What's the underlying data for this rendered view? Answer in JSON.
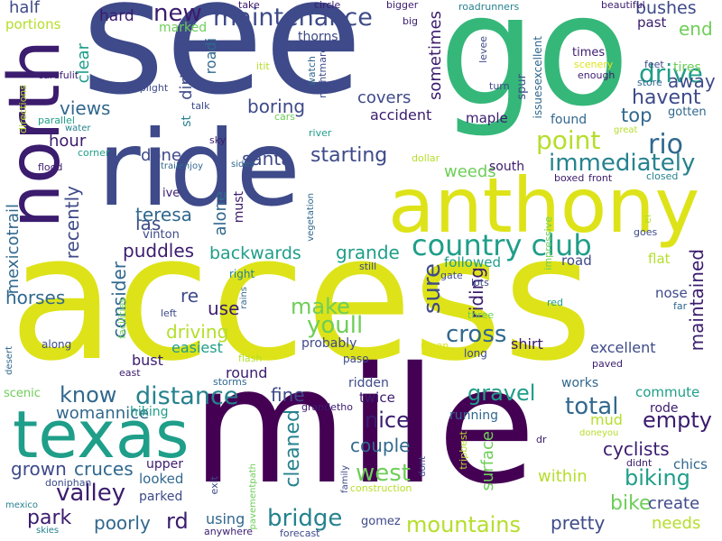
{
  "palette": {
    "dark_purple": "#440154",
    "indigo": "#3e4a89",
    "blue": "#31688e",
    "teal": "#26828e",
    "green_teal": "#1f9e89",
    "green": "#35b779",
    "lime": "#6ece58",
    "yellow_green": "#b5de2b",
    "yellow": "#dde318"
  },
  "words": [
    {
      "text": "access",
      "color": "#dde318"
    },
    {
      "text": "see",
      "color": "#3e4a89"
    },
    {
      "text": "go",
      "color": "#35b779"
    },
    {
      "text": "mile",
      "color": "#440154"
    },
    {
      "text": "ride",
      "color": "#3e4a89"
    },
    {
      "text": "anthony",
      "color": "#dde318"
    },
    {
      "text": "north",
      "color": "#3b1c6e"
    },
    {
      "text": "texas",
      "color": "#1f9e89"
    },
    {
      "text": "country club",
      "color": "#1f9e89"
    },
    {
      "text": "maintenance",
      "color": "#3e4a89"
    },
    {
      "text": "new",
      "color": "#3b1c6e"
    },
    {
      "text": "immediately",
      "color": "#26828e"
    },
    {
      "text": "drive",
      "color": "#1f9e89"
    },
    {
      "text": "rio",
      "color": "#31688e"
    },
    {
      "text": "point",
      "color": "#b5de2b"
    },
    {
      "text": "away",
      "color": "#3e4a89"
    },
    {
      "text": "end",
      "color": "#6ece58"
    },
    {
      "text": "havent",
      "color": "#3e4a89"
    },
    {
      "text": "top",
      "color": "#31688e"
    },
    {
      "text": "bushes",
      "color": "#3e4a89"
    },
    {
      "text": "past",
      "color": "#3b1c6e"
    },
    {
      "text": "santa",
      "color": "#3e4a89"
    },
    {
      "text": "starting",
      "color": "#3e4a89"
    },
    {
      "text": "weeds",
      "color": "#6ece58"
    },
    {
      "text": "las",
      "color": "#3e4a89"
    },
    {
      "text": "teresa",
      "color": "#31688e"
    },
    {
      "text": "boring",
      "color": "#3e4a89"
    },
    {
      "text": "covers",
      "color": "#3e4a89"
    },
    {
      "text": "accident",
      "color": "#3b1c6e"
    },
    {
      "text": "views",
      "color": "#31688e"
    },
    {
      "text": "hour",
      "color": "#3b1c6e"
    },
    {
      "text": "done",
      "color": "#3e4a89"
    },
    {
      "text": "make",
      "color": "#6ece58"
    },
    {
      "text": "youll",
      "color": "#6ece58"
    },
    {
      "text": "cross",
      "color": "#31688e"
    },
    {
      "text": "sure",
      "color": "#3e4a89"
    },
    {
      "text": "riding",
      "color": "#3b1c6e"
    },
    {
      "text": "maintained",
      "color": "#3b1c6e"
    },
    {
      "text": "puddles",
      "color": "#3b1c6e"
    },
    {
      "text": "backwards",
      "color": "#1f9e89"
    },
    {
      "text": "grande",
      "color": "#1f9e89"
    },
    {
      "text": "distance",
      "color": "#26828e"
    },
    {
      "text": "know",
      "color": "#31688e"
    },
    {
      "text": "gravel",
      "color": "#1f9e89"
    },
    {
      "text": "nice",
      "color": "#3b1c6e"
    },
    {
      "text": "total",
      "color": "#31688e"
    },
    {
      "text": "empty",
      "color": "#3b1c6e"
    },
    {
      "text": "west",
      "color": "#6ece58"
    },
    {
      "text": "biking",
      "color": "#1f9e89"
    },
    {
      "text": "valley",
      "color": "#3b1c6e"
    },
    {
      "text": "park",
      "color": "#3b1c6e"
    },
    {
      "text": "bridge",
      "color": "#26828e"
    },
    {
      "text": "mountains",
      "color": "#b5de2b"
    },
    {
      "text": "pretty",
      "color": "#3e4a89"
    },
    {
      "text": "bike",
      "color": "#6ece58"
    },
    {
      "text": "create",
      "color": "#3e4a89"
    },
    {
      "text": "needs",
      "color": "#b5de2b"
    },
    {
      "text": "cyclists",
      "color": "#3b1c6e"
    },
    {
      "text": "couple",
      "color": "#31688e"
    },
    {
      "text": "womannice",
      "color": "#31688e"
    },
    {
      "text": "grown",
      "color": "#3e4a89"
    },
    {
      "text": "cruces",
      "color": "#31688e"
    },
    {
      "text": "poorly",
      "color": "#31688e"
    },
    {
      "text": "rd",
      "color": "#3b1c6e"
    },
    {
      "text": "fine",
      "color": "#3e4a89"
    },
    {
      "text": "cleaned",
      "color": "#26828e"
    },
    {
      "text": "driving",
      "color": "#b5de2b"
    },
    {
      "text": "consider",
      "color": "#31688e"
    },
    {
      "text": "horses",
      "color": "#31688e"
    },
    {
      "text": "mexicotrail",
      "color": "#31688e"
    },
    {
      "text": "recently",
      "color": "#3e4a89"
    },
    {
      "text": "half",
      "color": "#3e4a89"
    },
    {
      "text": "portions",
      "color": "#b5de2b"
    },
    {
      "text": "hard",
      "color": "#3b1c6e"
    },
    {
      "text": "marked",
      "color": "#6ece58"
    },
    {
      "text": "sometimes",
      "color": "#3b1c6e"
    },
    {
      "text": "clear",
      "color": "#1f9e89"
    },
    {
      "text": "dirt",
      "color": "#3e4a89"
    },
    {
      "text": "roadi",
      "color": "#31688e"
    },
    {
      "text": "thorns",
      "color": "#3e4a89"
    },
    {
      "text": "alone",
      "color": "#31688e"
    },
    {
      "text": "must",
      "color": "#3b1c6e"
    },
    {
      "text": "ive",
      "color": "#3b1c6e"
    },
    {
      "text": "vinton",
      "color": "#3e4a89"
    },
    {
      "text": "re",
      "color": "#3e4a89"
    },
    {
      "text": "use",
      "color": "#3b1c6e"
    },
    {
      "text": "easiest",
      "color": "#1f9e89"
    },
    {
      "text": "probably",
      "color": "#3e4a89"
    },
    {
      "text": "bust",
      "color": "#3b1c6e"
    },
    {
      "text": "round",
      "color": "#3b1c6e"
    },
    {
      "text": "shirt",
      "color": "#3b1c6e"
    },
    {
      "text": "excellent",
      "color": "#3e4a89"
    },
    {
      "text": "followed",
      "color": "#1f9e89"
    },
    {
      "text": "road",
      "color": "#3e4a89"
    },
    {
      "text": "flat",
      "color": "#b5de2b"
    },
    {
      "text": "nose",
      "color": "#3e4a89"
    },
    {
      "text": "commute",
      "color": "#1f9e89"
    },
    {
      "text": "rode",
      "color": "#3b1c6e"
    },
    {
      "text": "works",
      "color": "#31688e"
    },
    {
      "text": "twice",
      "color": "#3b1c6e"
    },
    {
      "text": "ridden",
      "color": "#3e4a89"
    },
    {
      "text": "mud",
      "color": "#b5de2b"
    },
    {
      "text": "within",
      "color": "#b5de2b"
    },
    {
      "text": "surface",
      "color": "#6ece58"
    },
    {
      "text": "running",
      "color": "#31688e"
    },
    {
      "text": "hiking",
      "color": "#1f9e89"
    },
    {
      "text": "looked",
      "color": "#31688e"
    },
    {
      "text": "parked",
      "color": "#3e4a89"
    },
    {
      "text": "upper",
      "color": "#3b1c6e"
    },
    {
      "text": "using",
      "color": "#31688e"
    },
    {
      "text": "gomez",
      "color": "#3e4a89"
    },
    {
      "text": "chics",
      "color": "#31688e"
    },
    {
      "text": "maple",
      "color": "#3b1c6e"
    },
    {
      "text": "south",
      "color": "#3b1c6e"
    },
    {
      "text": "found",
      "color": "#31688e"
    },
    {
      "text": "gotten",
      "color": "#31688e"
    },
    {
      "text": "tires",
      "color": "#6ece58"
    },
    {
      "text": "times",
      "color": "#3b1c6e"
    },
    {
      "text": "scenic",
      "color": "#6ece58"
    },
    {
      "text": "east",
      "color": "#3b1c6e"
    },
    {
      "text": "storms",
      "color": "#31688e"
    },
    {
      "text": "flash",
      "color": "#b5de2b"
    },
    {
      "text": "along",
      "color": "#3e4a89"
    },
    {
      "text": "paso",
      "color": "#3e4a89"
    },
    {
      "text": "long",
      "color": "#3e4a89"
    },
    {
      "text": "mean",
      "color": "#dde318"
    },
    {
      "text": "three",
      "color": "#6ece58"
    },
    {
      "text": "paved",
      "color": "#3b1c6e"
    },
    {
      "text": "desert",
      "color": "#31688e"
    },
    {
      "text": "facilities",
      "color": "#6ece58"
    },
    {
      "text": "left",
      "color": "#3e4a89"
    },
    {
      "text": "rains",
      "color": "#31688e"
    },
    {
      "text": "right",
      "color": "#26828e"
    },
    {
      "text": "still",
      "color": "#3e4a89"
    },
    {
      "text": "lots",
      "color": "#3e4a89"
    },
    {
      "text": "red",
      "color": "#1f9e89"
    },
    {
      "text": "far",
      "color": "#31688e"
    },
    {
      "text": "gate",
      "color": "#3e4a89"
    },
    {
      "text": "impressive",
      "color": "#6ece58"
    },
    {
      "text": "goes",
      "color": "#3e4a89"
    },
    {
      "text": "el",
      "color": "#b5de2b"
    },
    {
      "text": "closed",
      "color": "#26828e"
    },
    {
      "text": "boxed",
      "color": "#3b1c6e"
    },
    {
      "text": "front",
      "color": "#3b1c6e"
    },
    {
      "text": "dollar",
      "color": "#b5de2b"
    },
    {
      "text": "great",
      "color": "#b5de2b"
    },
    {
      "text": "store",
      "color": "#31688e"
    },
    {
      "text": "enough",
      "color": "#3b1c6e"
    },
    {
      "text": "feet",
      "color": "#3e4a89"
    },
    {
      "text": "scenery",
      "color": "#dde318"
    },
    {
      "text": "issuesexcellent",
      "color": "#31688e"
    },
    {
      "text": "spur",
      "color": "#3e4a89"
    },
    {
      "text": "turn",
      "color": "#3e4a89"
    },
    {
      "text": "levee",
      "color": "#3e4a89"
    },
    {
      "text": "beautiful",
      "color": "#3b1c6e"
    },
    {
      "text": "roadrunners",
      "color": "#26828e"
    },
    {
      "text": "big",
      "color": "#3b1c6e"
    },
    {
      "text": "bigger",
      "color": "#3b1c6e"
    },
    {
      "text": "circle",
      "color": "#3b1c6e"
    },
    {
      "text": "take",
      "color": "#3b1c6e"
    },
    {
      "text": "watch",
      "color": "#31688e"
    },
    {
      "text": "nightmare",
      "color": "#3e4a89"
    },
    {
      "text": "itit",
      "color": "#b5de2b"
    },
    {
      "text": "stoplight",
      "color": "#3e4a89"
    },
    {
      "text": "talk",
      "color": "#3e4a89"
    },
    {
      "text": "st",
      "color": "#26828e"
    },
    {
      "text": "carefulit",
      "color": "#3b1c6e"
    },
    {
      "text": "parallel",
      "color": "#1f9e89"
    },
    {
      "text": "water",
      "color": "#26828e"
    },
    {
      "text": "corner",
      "color": "#1f9e89"
    },
    {
      "text": "flood",
      "color": "#3b1c6e"
    },
    {
      "text": "directions",
      "color": "#b5de2b"
    },
    {
      "text": "trailenjoy",
      "color": "#31688e"
    },
    {
      "text": "sides",
      "color": "#31688e"
    },
    {
      "text": "sky",
      "color": "#3b1c6e"
    },
    {
      "text": "river",
      "color": "#1f9e89"
    },
    {
      "text": "cars",
      "color": "#6ece58"
    },
    {
      "text": "vegetation",
      "color": "#31688e"
    },
    {
      "text": "grandetho",
      "color": "#3b1c6e"
    },
    {
      "text": "tripbest",
      "color": "#b5de2b"
    },
    {
      "text": "doneyou",
      "color": "#b5de2b"
    },
    {
      "text": "dr",
      "color": "#3b1c6e"
    },
    {
      "text": "didnt",
      "color": "#3b1c6e"
    },
    {
      "text": "dont",
      "color": "#3e4a89"
    },
    {
      "text": "family",
      "color": "#3e4a89"
    },
    {
      "text": "construction",
      "color": "#b5de2b"
    },
    {
      "text": "exit",
      "color": "#3e4a89"
    },
    {
      "text": "pavementpath",
      "color": "#6ece58"
    },
    {
      "text": "anywhere",
      "color": "#3b1c6e"
    },
    {
      "text": "forecast",
      "color": "#3e4a89"
    },
    {
      "text": "skies",
      "color": "#26828e"
    },
    {
      "text": "mexico",
      "color": "#26828e"
    },
    {
      "text": "doniphan",
      "color": "#3e4a89"
    }
  ]
}
